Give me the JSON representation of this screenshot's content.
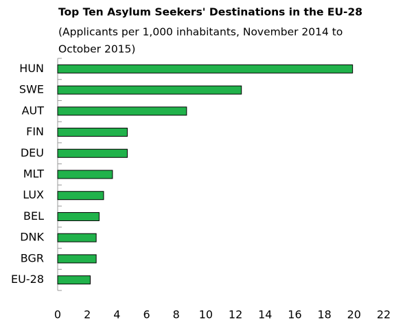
{
  "chart_data": {
    "type": "hbar",
    "title": "Top Ten Asylum Seekers' Destinations in the EU-28",
    "subtitle": [
      "(Applicants per 1,000 inhabitants, November 2014 to",
      "October 2015)"
    ],
    "categories": [
      "HUN",
      "SWE",
      "AUT",
      "FIN",
      "DEU",
      "MLT",
      "LUX",
      "BEL",
      "DNK",
      "BGR",
      "EU-28"
    ],
    "values": [
      19.9,
      12.4,
      8.7,
      4.7,
      4.7,
      3.7,
      3.1,
      2.8,
      2.6,
      2.6,
      2.2
    ],
    "color": "#21b24b",
    "xlim": [
      0,
      22
    ],
    "xticks": [
      0,
      2,
      4,
      6,
      8,
      10,
      12,
      14,
      16,
      18,
      20,
      22
    ],
    "grid": false
  }
}
